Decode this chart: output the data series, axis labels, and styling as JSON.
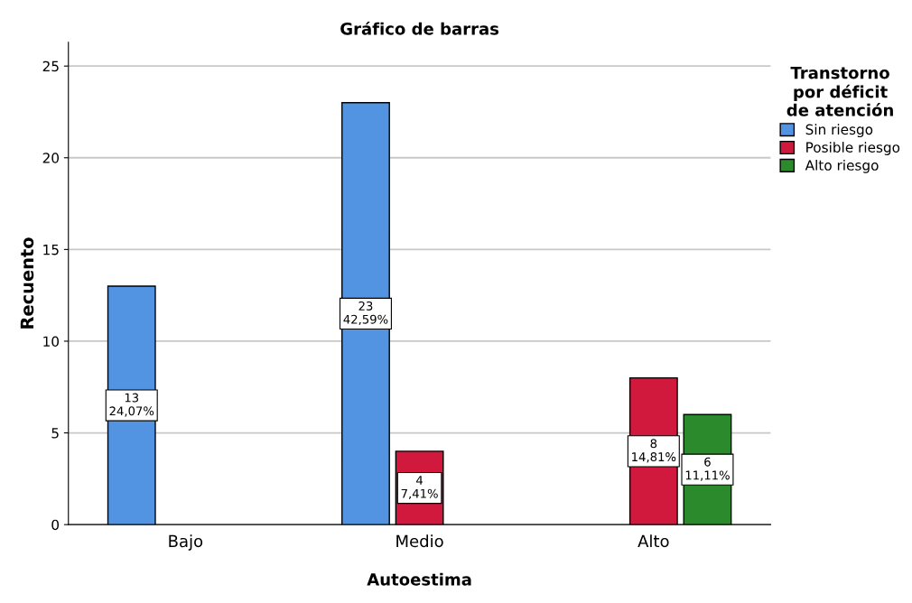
{
  "chart_data": {
    "type": "bar",
    "title": "Gráfico de barras",
    "xlabel": "Autoestima",
    "ylabel": "Recuento",
    "legend_title": "Transtorno\npor déficit\nde atención",
    "categories": [
      "Bajo",
      "Medio",
      "Alto"
    ],
    "series": [
      {
        "name": "Sin riesgo",
        "color": "#5294e2",
        "values": [
          13,
          23,
          null
        ],
        "value_labels": [
          "13\n24,07%",
          "23\n42,59%",
          null
        ]
      },
      {
        "name": "Posible riesgo",
        "color": "#d1193e",
        "values": [
          null,
          4,
          8
        ],
        "value_labels": [
          null,
          "4\n7,41%",
          "8\n14,81%"
        ]
      },
      {
        "name": "Alto riesgo",
        "color": "#2b8a2b",
        "values": [
          null,
          null,
          6
        ],
        "value_labels": [
          null,
          null,
          "6\n11,11%"
        ]
      }
    ],
    "ylim": [
      0,
      26.3
    ],
    "yticks": [
      0,
      5,
      10,
      15,
      20,
      25
    ],
    "grid": "y",
    "legend": "top right"
  }
}
